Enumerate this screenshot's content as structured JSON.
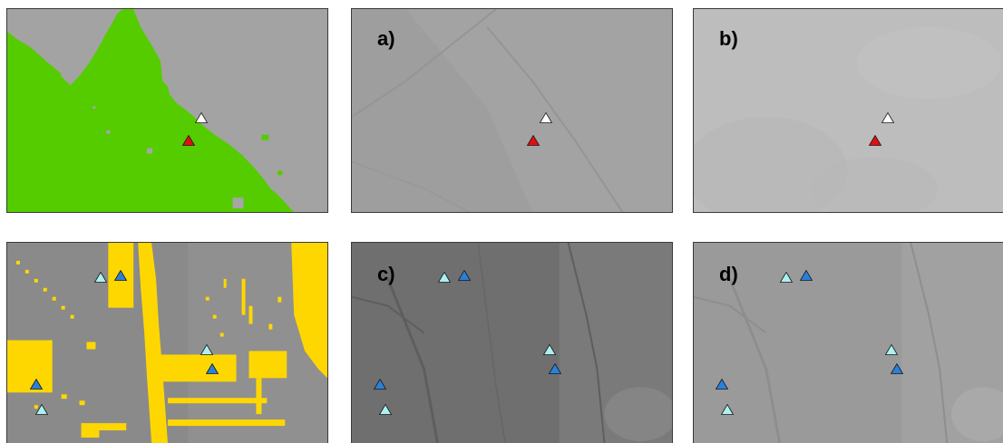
{
  "figure": {
    "panels": [
      {
        "id": "top-left",
        "label": ""
      },
      {
        "id": "a",
        "label": "a)"
      },
      {
        "id": "b",
        "label": "b)"
      },
      {
        "id": "bottom-left",
        "label": ""
      },
      {
        "id": "c",
        "label": "c)"
      },
      {
        "id": "d",
        "label": "d)"
      }
    ]
  },
  "colors": {
    "overlay_green": "#55cc00",
    "overlay_yellow": "#ffd700",
    "marker_white": "#ffffff",
    "marker_red": "#e01010",
    "marker_light_cyan": "#aef0f0",
    "marker_blue": "#2a80d8",
    "marker_outline": "#1a1a1a"
  }
}
